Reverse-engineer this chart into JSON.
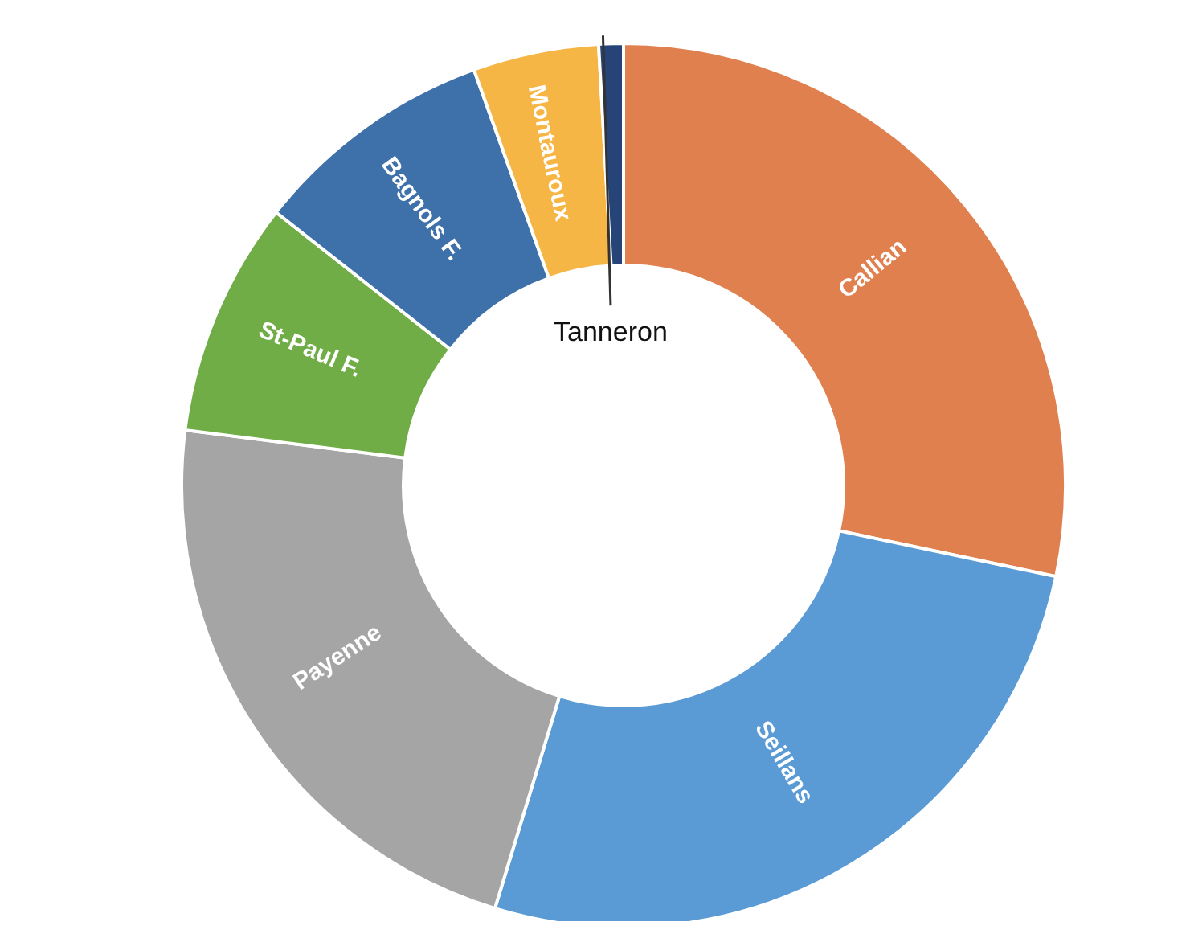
{
  "chart_data": {
    "type": "donut",
    "categories": [
      "Callian",
      "Seillans",
      "Payenne",
      "St-Paul F.",
      "Bagnols F.",
      "Montauroux",
      "Tanneron"
    ],
    "values": [
      28.3,
      26.4,
      22.3,
      8.6,
      8.9,
      4.6,
      0.9
    ],
    "colors": [
      "#e0804f",
      "#5b9bd5",
      "#a5a5a5",
      "#70ad47",
      "#3e70a9",
      "#f6b646",
      "#264478"
    ],
    "legend": false
  }
}
